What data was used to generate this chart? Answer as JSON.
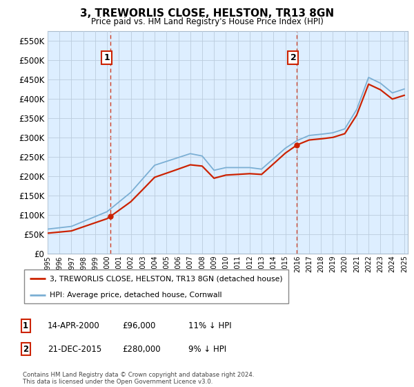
{
  "title": "3, TREWORLIS CLOSE, HELSTON, TR13 8GN",
  "subtitle": "Price paid vs. HM Land Registry's House Price Index (HPI)",
  "legend_line1": "3, TREWORLIS CLOSE, HELSTON, TR13 8GN (detached house)",
  "legend_line2": "HPI: Average price, detached house, Cornwall",
  "table_row1": [
    "1",
    "14-APR-2000",
    "£96,000",
    "11% ↓ HPI"
  ],
  "table_row2": [
    "2",
    "21-DEC-2015",
    "£280,000",
    "9% ↓ HPI"
  ],
  "footer": "Contains HM Land Registry data © Crown copyright and database right 2024.\nThis data is licensed under the Open Government Licence v3.0.",
  "hpi_color": "#7bafd4",
  "price_color": "#cc2200",
  "sale1_year": 2000.29,
  "sale2_year": 2015.96,
  "sale1_price": 96000,
  "sale2_price": 280000,
  "ylim": [
    0,
    575000
  ],
  "yticks": [
    0,
    50000,
    100000,
    150000,
    200000,
    250000,
    300000,
    350000,
    400000,
    450000,
    500000,
    550000
  ],
  "chart_bg": "#ddeeff",
  "fig_bg": "#ffffff",
  "grid_color": "#bbccdd",
  "hpi_knots": [
    1995,
    1997,
    2000,
    2002,
    2004,
    2007,
    2008,
    2009,
    2010,
    2012,
    2013,
    2015,
    2016,
    2017,
    2018,
    2019,
    2020,
    2021,
    2022,
    2023,
    2024,
    2025
  ],
  "hpi_vals": [
    63000,
    70000,
    108000,
    158000,
    228000,
    258000,
    252000,
    215000,
    222000,
    222000,
    218000,
    272000,
    292000,
    305000,
    308000,
    312000,
    322000,
    372000,
    455000,
    440000,
    415000,
    425000
  ]
}
